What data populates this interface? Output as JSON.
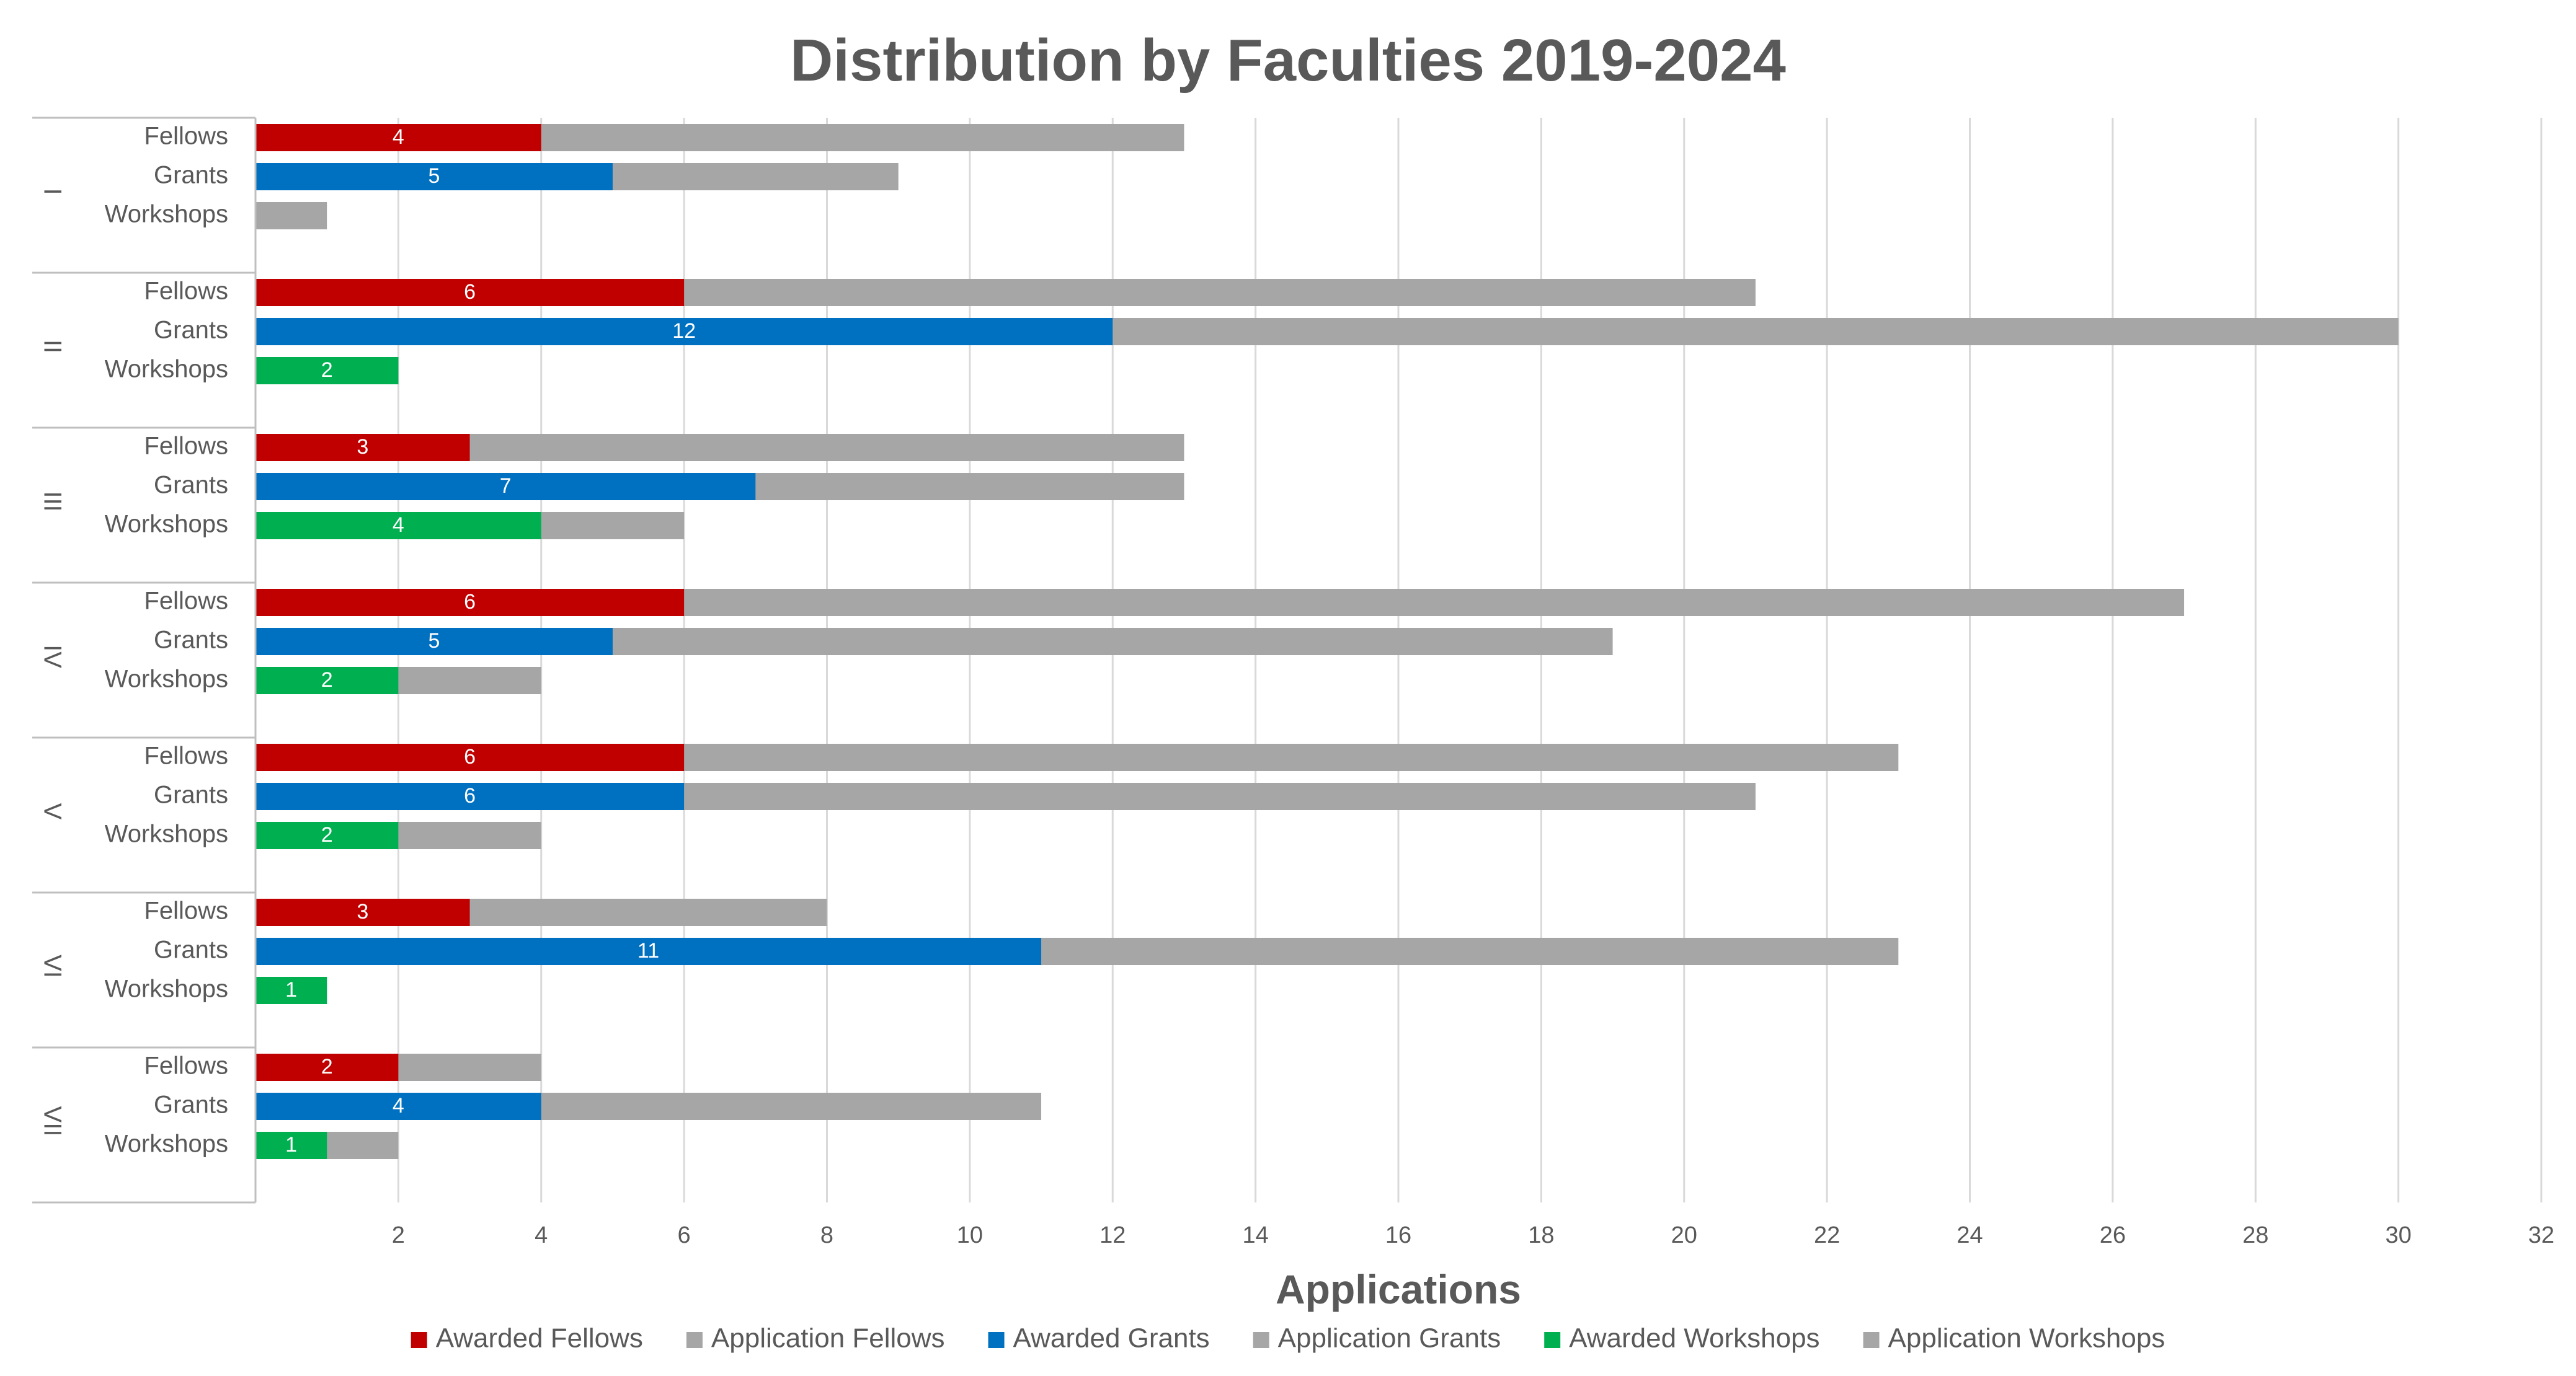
{
  "chart_data": {
    "type": "bar",
    "orientation": "horizontal",
    "stacked": true,
    "title": "Distribution by Faculties 2019-2024",
    "xlabel": "Applications",
    "ylabel": "",
    "xlim": [
      0,
      32
    ],
    "xticks": [
      2,
      4,
      6,
      8,
      10,
      12,
      14,
      16,
      18,
      20,
      22,
      24,
      26,
      28,
      30,
      32
    ],
    "grid": true,
    "legend_position": "bottom",
    "subcategories": [
      "Fellows",
      "Grants",
      "Workshops"
    ],
    "groups": [
      {
        "label": "I",
        "rows": [
          {
            "category": "Fellows",
            "awarded": 4,
            "application": 13
          },
          {
            "category": "Grants",
            "awarded": 5,
            "application": 9
          },
          {
            "category": "Workshops",
            "awarded": 0,
            "application": 1
          }
        ]
      },
      {
        "label": "II",
        "rows": [
          {
            "category": "Fellows",
            "awarded": 6,
            "application": 21
          },
          {
            "category": "Grants",
            "awarded": 12,
            "application": 30
          },
          {
            "category": "Workshops",
            "awarded": 2,
            "application": 2
          }
        ]
      },
      {
        "label": "III",
        "rows": [
          {
            "category": "Fellows",
            "awarded": 3,
            "application": 13
          },
          {
            "category": "Grants",
            "awarded": 7,
            "application": 13
          },
          {
            "category": "Workshops",
            "awarded": 4,
            "application": 6
          }
        ]
      },
      {
        "label": "IV",
        "rows": [
          {
            "category": "Fellows",
            "awarded": 6,
            "application": 27
          },
          {
            "category": "Grants",
            "awarded": 5,
            "application": 19
          },
          {
            "category": "Workshops",
            "awarded": 2,
            "application": 4
          }
        ]
      },
      {
        "label": "V",
        "rows": [
          {
            "category": "Fellows",
            "awarded": 6,
            "application": 23
          },
          {
            "category": "Grants",
            "awarded": 6,
            "application": 21
          },
          {
            "category": "Workshops",
            "awarded": 2,
            "application": 4
          }
        ]
      },
      {
        "label": "VI",
        "rows": [
          {
            "category": "Fellows",
            "awarded": 3,
            "application": 8
          },
          {
            "category": "Grants",
            "awarded": 11,
            "application": 23
          },
          {
            "category": "Workshops",
            "awarded": 1,
            "application": 1
          }
        ]
      },
      {
        "label": "VII",
        "rows": [
          {
            "category": "Fellows",
            "awarded": 2,
            "application": 4
          },
          {
            "category": "Grants",
            "awarded": 4,
            "application": 11
          },
          {
            "category": "Workshops",
            "awarded": 1,
            "application": 2
          }
        ]
      }
    ],
    "legend": [
      {
        "name": "Awarded Fellows",
        "color": "#c00000"
      },
      {
        "name": "Application Fellows",
        "color": "#a6a6a6"
      },
      {
        "name": "Awarded Grants",
        "color": "#0070c0"
      },
      {
        "name": "Application Grants",
        "color": "#a6a6a6"
      },
      {
        "name": "Awarded Workshops",
        "color": "#00b050"
      },
      {
        "name": "Application Workshops",
        "color": "#a6a6a6"
      }
    ],
    "colors": {
      "Fellows": "#c00000",
      "Grants": "#0070c0",
      "Workshops": "#00b050",
      "application": "#a6a6a6",
      "grid": "#d9d9d9",
      "axis": "#bfbfbf"
    }
  }
}
